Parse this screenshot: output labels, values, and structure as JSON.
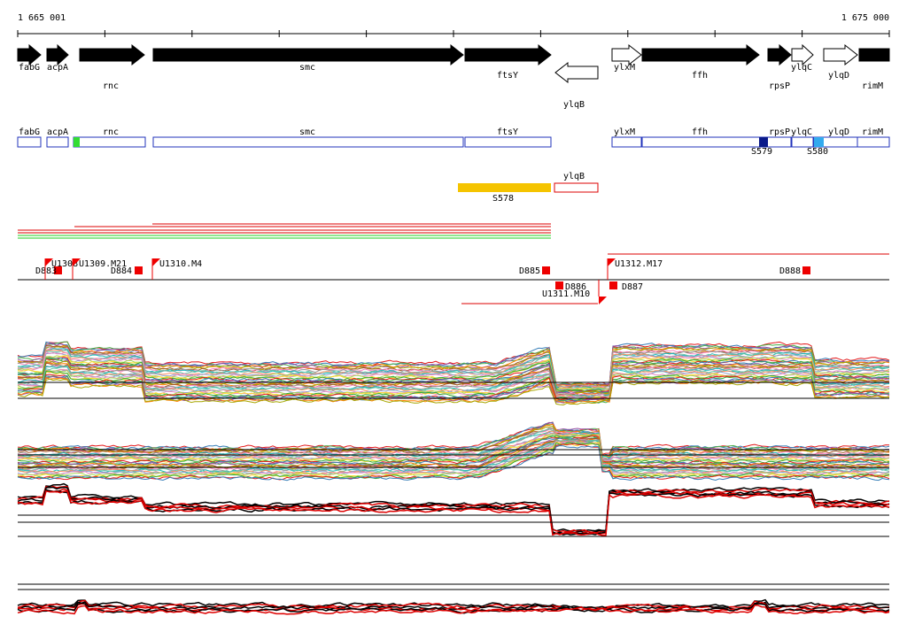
{
  "axis": {
    "start": "1 665 001",
    "end": "1 675 000"
  },
  "gene_track": [
    "fabG",
    "acpA",
    "rnc",
    "smc",
    "ftsY",
    "ylqB",
    "ylxM",
    "ffh",
    "rpsP",
    "ylqC",
    "ylqD",
    "rimM"
  ],
  "annotation_track": {
    "genes": [
      "fabG",
      "acpA",
      "rnc",
      "smc",
      "ftsY",
      "ylxM",
      "ffh",
      "rpsP",
      "ylqC",
      "ylqD",
      "rimM",
      "ylqB"
    ],
    "segments": [
      "S578",
      "S579",
      "S580"
    ]
  },
  "transcripts": [
    "D883",
    "U1308",
    "U1309.M21",
    "D884",
    "U1310.M4",
    "D885",
    "D886",
    "U1311.M10",
    "U1312.M17",
    "D887",
    "D888"
  ]
}
